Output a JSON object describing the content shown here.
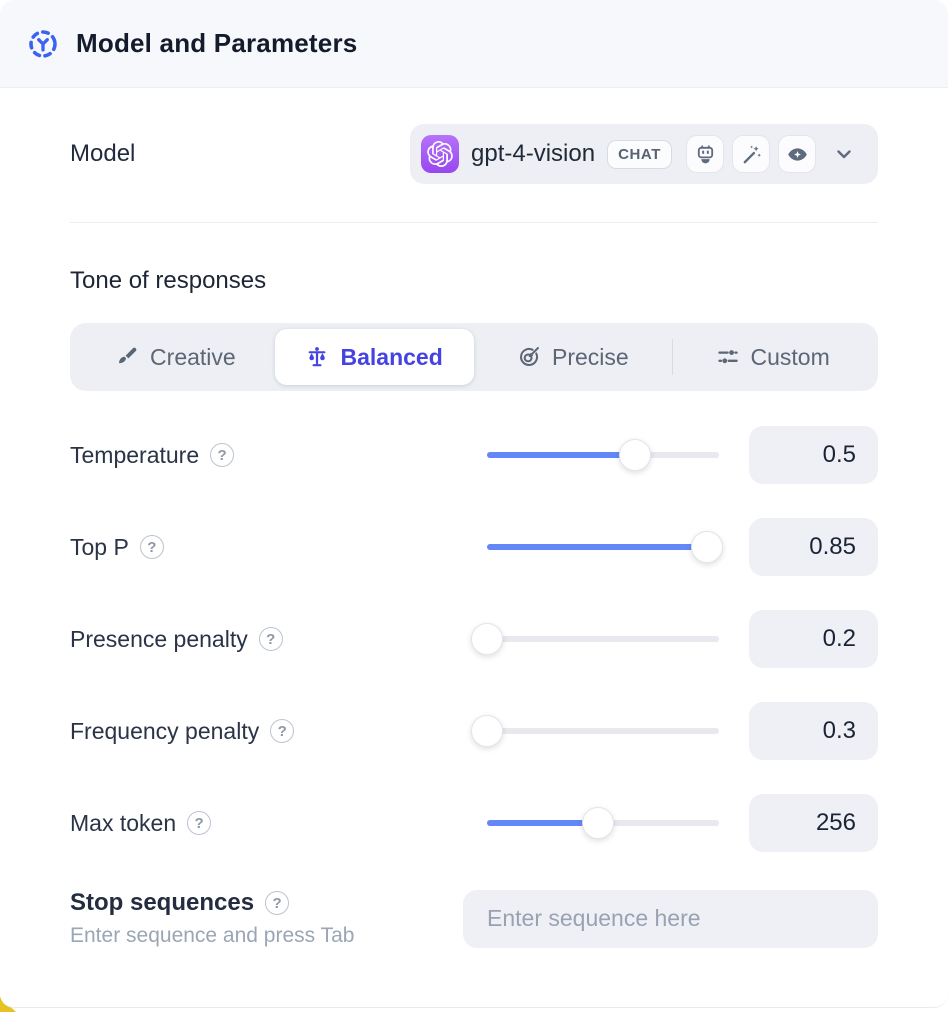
{
  "header": {
    "title": "Model and Parameters",
    "icon": "model-hub-icon"
  },
  "model_row": {
    "label": "Model",
    "selected_model": "gpt-4-vision",
    "type_badge": "CHAT",
    "capability_icons": [
      "robot-icon",
      "magic-wand-icon",
      "vision-eye-icon"
    ]
  },
  "tone": {
    "label": "Tone of responses",
    "options": [
      {
        "label": "Creative",
        "icon": "paintbrush-icon",
        "selected": false
      },
      {
        "label": "Balanced",
        "icon": "balance-scale-icon",
        "selected": true
      },
      {
        "label": "Precise",
        "icon": "target-arrow-icon",
        "selected": false
      },
      {
        "label": "Custom",
        "icon": "sliders-icon",
        "selected": false
      }
    ]
  },
  "parameters": [
    {
      "label": "Temperature",
      "value": "0.5",
      "fill_percent": 64
    },
    {
      "label": "Top P",
      "value": "0.85",
      "fill_percent": 95
    },
    {
      "label": "Presence penalty",
      "value": "0.2",
      "fill_percent": 0
    },
    {
      "label": "Frequency penalty",
      "value": "0.3",
      "fill_percent": 0
    },
    {
      "label": "Max token",
      "value": "256",
      "fill_percent": 48
    }
  ],
  "stop_sequences": {
    "label": "Stop sequences",
    "helper": "Enter sequence and press Tab",
    "placeholder": "Enter sequence here",
    "current_value": ""
  },
  "help_glyph": "?",
  "colors": {
    "accent-blue": "#6487f7",
    "accent-blue-strong": "#3b63f3",
    "accent-indigo": "#4643e3",
    "accent-yellow": "#e6c322",
    "openai-purple": "#a158f5"
  }
}
